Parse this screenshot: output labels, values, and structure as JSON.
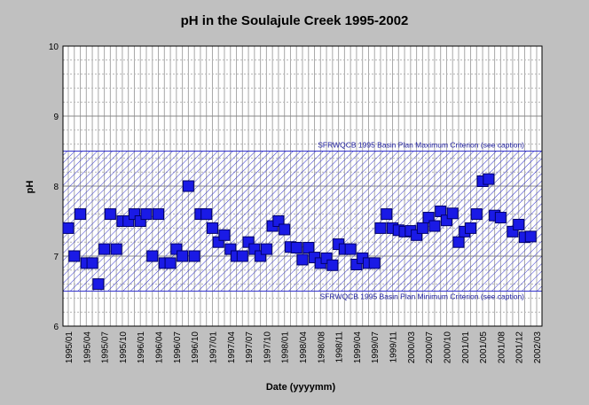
{
  "chart_data": {
    "type": "scatter",
    "title": "pH in the Soulajule Creek 1995-2002",
    "xlabel": "Date (yyyymm)",
    "ylabel": "pH",
    "ylim": [
      6,
      10
    ],
    "yticks": [
      "6",
      "7",
      "8",
      "9",
      "10"
    ],
    "xticks": [
      "1995/01",
      "1995/04",
      "1995/07",
      "1995/10",
      "1996/01",
      "1996/04",
      "1996/07",
      "1996/10",
      "1997/01",
      "1997/04",
      "1997/07",
      "1997/10",
      "1998/01",
      "1998/04",
      "1998/08",
      "1998/11",
      "1999/04",
      "1999/07",
      "1999/11",
      "2000/03",
      "2000/07",
      "2000/10",
      "2001/01",
      "2001/05",
      "2001/08",
      "2001/12",
      "2002/03"
    ],
    "band": {
      "max": 8.5,
      "min": 6.5,
      "max_label": "SFRWQCB 1995 Basin Plan Maximum Criterion (see caption)",
      "min_label": "SFRWQCB 1995 Basin Plan Minimum Criterion (see caption)"
    },
    "grid": true,
    "colors": {
      "marker": "#1a1ae6",
      "band": "#3333cc",
      "plot_bg": "#ffffff",
      "frame_bg": "#c0c0c0"
    },
    "series": [
      {
        "x": [
          0,
          1,
          2,
          3,
          4,
          5,
          6,
          7,
          8,
          9,
          10,
          11,
          12,
          13,
          14,
          15,
          16,
          17,
          18,
          19,
          20,
          21,
          22,
          23,
          24,
          25,
          26,
          27,
          28,
          29,
          30,
          31,
          32,
          33,
          34,
          35,
          36,
          37,
          38,
          39,
          40,
          41,
          42,
          43,
          44,
          45,
          46,
          47,
          48,
          49,
          50,
          51,
          52,
          53,
          54,
          55,
          56,
          57,
          58,
          59,
          60,
          61,
          62,
          63,
          64,
          65,
          66,
          67,
          68,
          69,
          70,
          71,
          72,
          73,
          74,
          75,
          76,
          77,
          78
        ],
        "values": [
          7.4,
          7.0,
          7.6,
          6.9,
          6.9,
          6.6,
          7.1,
          7.6,
          7.1,
          7.5,
          7.5,
          7.6,
          7.5,
          7.6,
          7.0,
          7.6,
          6.9,
          6.9,
          7.1,
          7.0,
          8.0,
          7.0,
          7.6,
          7.6,
          7.4,
          7.2,
          7.3,
          7.1,
          7.0,
          7.0,
          7.2,
          7.1,
          7.0,
          7.1,
          7.43,
          7.5,
          7.38,
          7.13,
          7.12,
          6.95,
          7.12,
          6.98,
          6.9,
          6.97,
          6.87,
          7.17,
          7.1,
          7.1,
          6.88,
          6.97,
          6.9,
          6.9,
          7.4,
          7.6,
          7.4,
          7.37,
          7.35,
          7.36,
          7.3,
          7.4,
          7.55,
          7.43,
          7.64,
          7.51,
          7.61,
          7.2,
          7.35,
          7.4,
          7.6,
          8.07,
          8.1,
          7.58,
          7.55,
          null,
          7.35,
          7.45,
          7.27,
          7.28,
          null
        ]
      }
    ]
  }
}
